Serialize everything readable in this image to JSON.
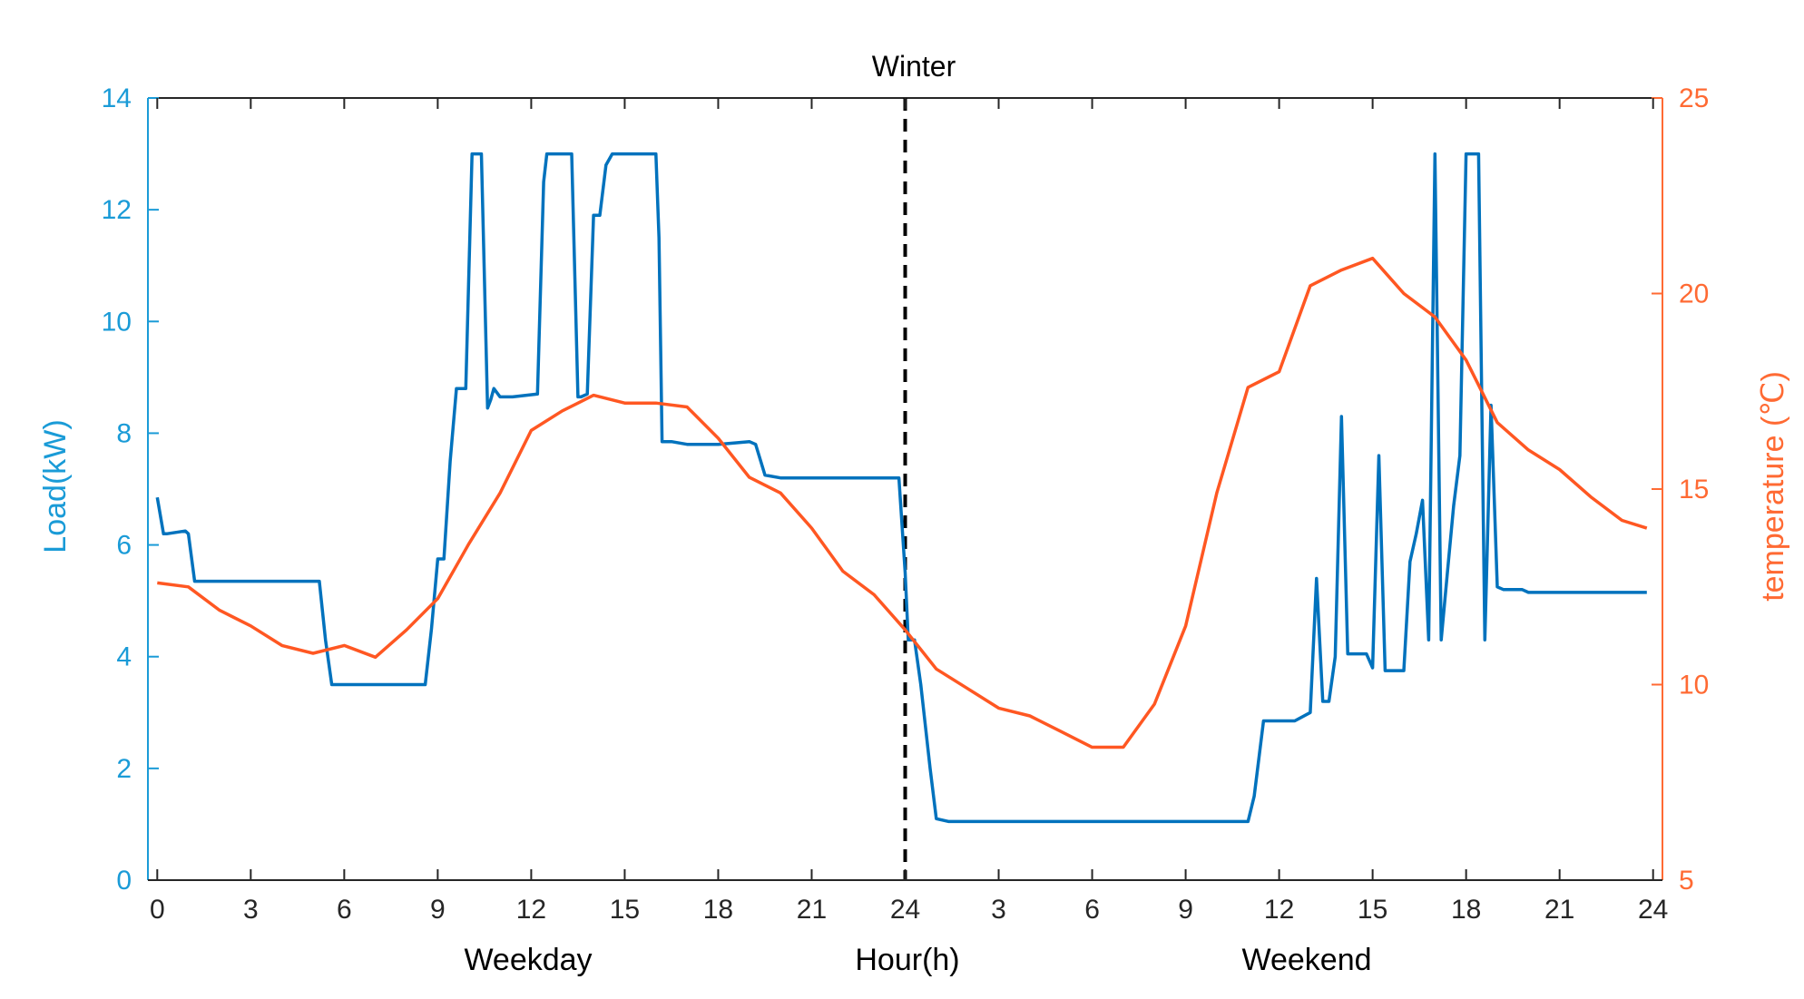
{
  "chart_data": {
    "type": "line",
    "title": "Winter",
    "xlabel": "Hour(h)",
    "xgroup_labels": [
      "Weekday",
      "Weekend"
    ],
    "x_range_hours": [
      -0.3,
      48.3
    ],
    "xtick_hours": [
      0,
      3,
      6,
      9,
      12,
      15,
      18,
      21,
      24,
      27,
      30,
      33,
      36,
      39,
      42,
      45,
      48
    ],
    "xtick_labels": [
      "0",
      "3",
      "6",
      "9",
      "12",
      "15",
      "18",
      "21",
      "24",
      "3",
      "6",
      "9",
      "12",
      "15",
      "18",
      "21",
      "24"
    ],
    "divider_hour": 24,
    "ylabel_left": "Load(kW)",
    "ylim_left": [
      0,
      14
    ],
    "yticks_left": [
      "0",
      "2",
      "4",
      "6",
      "8",
      "10",
      "12",
      "14"
    ],
    "ylabel_right": "temperature (℃)",
    "ylim_right": [
      5,
      25
    ],
    "yticks_right": [
      "5",
      "10",
      "15",
      "20",
      "25"
    ],
    "colors": {
      "load": "#0072BD",
      "temperature": "#FF5722",
      "left_axis": "#1A9BD7",
      "right_axis": "#FF6A33",
      "divider": "#000000"
    },
    "series": [
      {
        "name": "Load",
        "axis": "left",
        "x": [
          0,
          0.2,
          0.3,
          0.9,
          1.0,
          1.2,
          2.5,
          3.5,
          4.5,
          5.0,
          5.2,
          5.4,
          5.6,
          6.5,
          7.5,
          8.0,
          8.6,
          8.8,
          9.0,
          9.2,
          9.4,
          9.6,
          9.9,
          10.1,
          10.2,
          10.4,
          10.6,
          10.7,
          10.8,
          11.0,
          11.2,
          11.4,
          12.2,
          12.4,
          12.5,
          12.7,
          13.3,
          13.5,
          13.6,
          13.8,
          14.0,
          14.2,
          14.4,
          14.6,
          14.8,
          15.0,
          15.5,
          16.0,
          16.1,
          16.2,
          16.5,
          17.0,
          18.0,
          19.0,
          19.2,
          19.5,
          20.0,
          21.0,
          22.0,
          23.0,
          23.5,
          23.8,
          24.0,
          24.1,
          24.3,
          24.5,
          24.8,
          25.0,
          25.4,
          26.5,
          28.0,
          30.0,
          32.0,
          34.5,
          35.0,
          35.2,
          35.5,
          36.0,
          36.5,
          37.0,
          37.2,
          37.4,
          37.6,
          37.8,
          38.0,
          38.2,
          38.4,
          38.6,
          38.8,
          39.0,
          39.2,
          39.4,
          39.6,
          39.8,
          40.0,
          40.2,
          40.4,
          40.6,
          40.8,
          41.0,
          41.2,
          41.4,
          41.6,
          41.8,
          42.0,
          42.2,
          42.4,
          42.6,
          42.8,
          43.0,
          43.2,
          43.4,
          43.6,
          43.8,
          44.0,
          44.2,
          44.4,
          44.6,
          44.8,
          45.0,
          45.2,
          45.4,
          45.6,
          45.8,
          46.0,
          46.5,
          47.0,
          47.5,
          47.8
        ],
        "values": [
          6.85,
          6.2,
          6.2,
          6.25,
          6.2,
          5.35,
          5.35,
          5.35,
          5.35,
          5.35,
          5.35,
          4.3,
          3.5,
          3.5,
          3.5,
          3.5,
          3.5,
          4.5,
          5.75,
          5.75,
          7.5,
          8.8,
          8.8,
          13.0,
          13.0,
          13.0,
          8.45,
          8.6,
          8.8,
          8.65,
          8.65,
          8.65,
          8.7,
          12.5,
          13.0,
          13.0,
          13.0,
          8.65,
          8.65,
          8.7,
          11.9,
          11.9,
          12.8,
          13.0,
          13.0,
          13.0,
          13.0,
          13.0,
          11.5,
          7.85,
          7.85,
          7.8,
          7.8,
          7.85,
          7.8,
          7.25,
          7.2,
          7.2,
          7.2,
          7.2,
          7.2,
          7.2,
          5.5,
          4.3,
          4.3,
          3.5,
          2.0,
          1.1,
          1.05,
          1.05,
          1.05,
          1.05,
          1.05,
          1.05,
          1.05,
          1.5,
          2.85,
          2.85,
          2.85,
          3.0,
          5.4,
          3.2,
          3.2,
          4.0,
          8.3,
          4.05,
          4.05,
          4.05,
          4.05,
          3.8,
          7.6,
          3.75,
          3.75,
          3.75,
          3.75,
          5.7,
          6.2,
          6.8,
          4.3,
          13.0,
          4.3,
          5.5,
          6.7,
          7.6,
          13.0,
          13.0,
          13.0,
          4.3,
          8.5,
          5.25,
          5.2,
          5.2,
          5.2,
          5.2,
          5.15,
          5.15,
          5.15,
          5.15,
          5.15,
          5.15,
          5.15,
          5.15,
          5.15,
          5.15,
          5.15,
          5.15,
          5.15,
          5.15,
          5.15
        ]
      },
      {
        "name": "temperature",
        "axis": "right",
        "x": [
          0,
          1,
          2,
          3,
          4,
          5,
          6,
          7,
          8,
          9,
          10,
          11,
          12,
          13,
          14,
          15,
          16,
          17,
          18,
          19,
          20,
          21,
          22,
          23,
          24,
          25,
          26,
          27,
          28,
          29,
          30,
          31,
          32,
          33,
          34,
          35,
          36,
          37,
          38,
          39,
          40,
          41,
          42,
          43,
          44,
          45,
          46,
          47,
          47.8
        ],
        "values": [
          12.6,
          12.5,
          11.9,
          11.5,
          11.0,
          10.8,
          11.0,
          10.7,
          11.4,
          12.2,
          13.6,
          14.9,
          16.5,
          17.0,
          17.4,
          17.2,
          17.2,
          17.1,
          16.3,
          15.3,
          14.9,
          14.0,
          12.9,
          12.3,
          11.4,
          10.4,
          9.9,
          9.4,
          9.2,
          8.8,
          8.4,
          8.4,
          9.5,
          11.5,
          14.9,
          17.6,
          18.0,
          20.2,
          20.6,
          20.9,
          20.0,
          19.4,
          18.3,
          16.7,
          16.0,
          15.5,
          14.8,
          14.2,
          14.0
        ]
      }
    ]
  }
}
